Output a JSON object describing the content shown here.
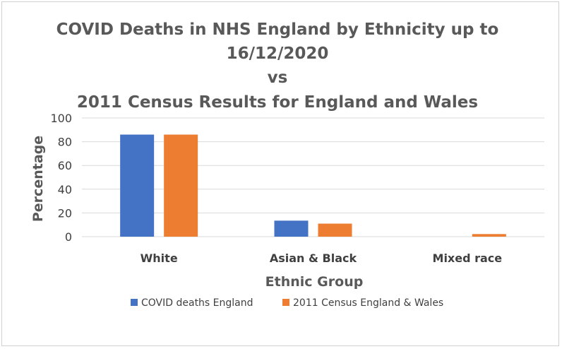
{
  "chart_data": {
    "type": "bar",
    "title_lines": [
      "COVID Deaths in NHS England by Ethnicity up to",
      "16/12/2020",
      "vs",
      "2011 Census Results for England and Wales"
    ],
    "xlabel": "Ethnic Group",
    "ylabel": "Percentage",
    "categories": [
      "White",
      "Asian & Black",
      "Mixed race"
    ],
    "ylim": [
      0,
      100
    ],
    "yticks": [
      0,
      20,
      40,
      60,
      80,
      100
    ],
    "grid": true,
    "legend_position": "bottom",
    "series": [
      {
        "name": "COVID deaths England",
        "color": "#4472c4",
        "values": [
          86,
          13.5,
          0
        ]
      },
      {
        "name": "2011 Census England & Wales",
        "color": "#ed7d31",
        "values": [
          86,
          11,
          2.2
        ]
      }
    ]
  }
}
